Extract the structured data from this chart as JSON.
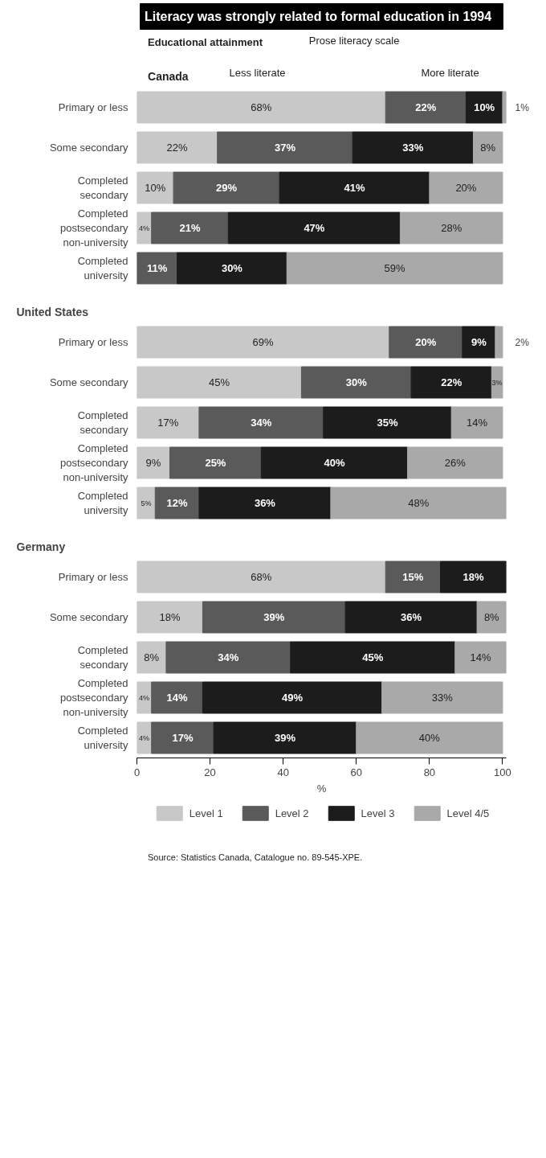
{
  "chart_data": [
    {
      "type": "bar",
      "orientation": "horizontal",
      "stacked": true,
      "title": "Literacy was strongly related to formal education in 1994",
      "subtitle": "Canada",
      "annotations": [
        "Educational attainment",
        "Prose literacy scale",
        "Less literate",
        "More literate"
      ],
      "categories": [
        "Primary or less",
        "Some secondary",
        "Completed secondary",
        "Completed postsecondary non-university",
        "Completed university"
      ],
      "xlim": [
        0,
        101
      ],
      "tick_labels": "y",
      "grid": false,
      "series": [
        {
          "color": "#c8c8c8",
          "values": [
            68,
            22,
            10,
            4,
            null
          ],
          "value_labels": [
            "68%",
            "22%",
            "10%",
            "4%",
            null
          ]
        },
        {
          "color": "#5a5a5a",
          "values": [
            22,
            37,
            29,
            21,
            11
          ],
          "value_labels": [
            "22%",
            "37%",
            "29%",
            "21%",
            "11%"
          ]
        },
        {
          "color": "#1c1c1c",
          "values": [
            10,
            33,
            41,
            47,
            30
          ],
          "value_labels": [
            "10%",
            "33%",
            "41%",
            "47%",
            "30%"
          ]
        },
        {
          "color": "#a9a9a9",
          "values": [
            1,
            8,
            20,
            28,
            59
          ],
          "value_labels": [
            "1%",
            "8%",
            "20%",
            "28%",
            "59%"
          ]
        }
      ]
    },
    {
      "type": "bar",
      "orientation": "horizontal",
      "stacked": true,
      "subtitle": "United States",
      "categories": [
        "Primary or less",
        "Some secondary",
        "Completed secondary",
        "Completed postsecondary non-university",
        "Completed university"
      ],
      "xlim": [
        0,
        101
      ],
      "tick_labels": "y",
      "grid": false,
      "series": [
        {
          "color": "#c8c8c8",
          "values": [
            69,
            45,
            17,
            9,
            5
          ],
          "value_labels": [
            "69%",
            "45%",
            "17%",
            "9%",
            "5%"
          ]
        },
        {
          "color": "#5a5a5a",
          "values": [
            20,
            30,
            34,
            25,
            12
          ],
          "value_labels": [
            "20%",
            "30%",
            "34%",
            "25%",
            "12%"
          ]
        },
        {
          "color": "#1c1c1c",
          "values": [
            9,
            22,
            35,
            40,
            36
          ],
          "value_labels": [
            "9%",
            "22%",
            "35%",
            "40%",
            "36%"
          ]
        },
        {
          "color": "#a9a9a9",
          "values": [
            2,
            3,
            14,
            26,
            48
          ],
          "value_labels": [
            "2%",
            "3%",
            "14%",
            "26%",
            "48%"
          ]
        }
      ]
    },
    {
      "type": "bar",
      "orientation": "horizontal",
      "stacked": true,
      "subtitle": "Germany",
      "xlabel": "%",
      "annotations": [
        "Source: Statistics Canada, Catalogue no. 89-545-XPE."
      ],
      "categories": [
        "Primary or less",
        "Some secondary",
        "Completed secondary",
        "Completed postsecondary non-university",
        "Completed university"
      ],
      "xlim": [
        0,
        101
      ],
      "xticks": [
        0,
        20,
        40,
        60,
        80,
        100
      ],
      "grid": false,
      "legend": "bottom",
      "series": [
        {
          "name": "Level 1",
          "color": "#c8c8c8",
          "values": [
            68,
            18,
            8,
            4,
            4
          ],
          "value_labels": [
            "68%",
            "18%",
            "8%",
            "4%",
            "4%"
          ]
        },
        {
          "name": "Level 2",
          "color": "#5a5a5a",
          "values": [
            15,
            39,
            34,
            14,
            17
          ],
          "value_labels": [
            "15%",
            "39%",
            "34%",
            "14%",
            "17%"
          ]
        },
        {
          "name": "Level 3",
          "color": "#1c1c1c",
          "values": [
            18,
            36,
            45,
            49,
            39
          ],
          "value_labels": [
            "18%",
            "36%",
            "45%",
            "49%",
            "39%"
          ]
        },
        {
          "name": "Level 4/5",
          "color": "#a9a9a9",
          "values": [
            null,
            8,
            14,
            33,
            40
          ],
          "value_labels": [
            null,
            "8%",
            "14%",
            "33%",
            "40%"
          ]
        }
      ]
    }
  ]
}
